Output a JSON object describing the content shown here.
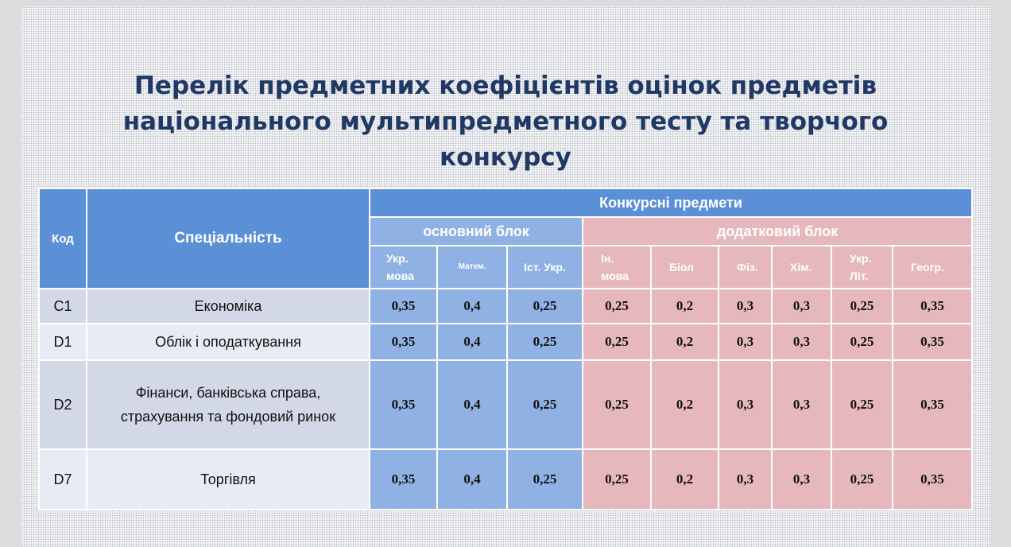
{
  "title": {
    "line1": "Перелік предметних коефіцієнтів оцінок предметів",
    "line2": "національного мультипредметного тесту та творчого",
    "line3": "конкурсу"
  },
  "table": {
    "code_header": "Код",
    "specialty_header": "Спеціальність",
    "subjects_header": "Конкурсні предмети",
    "basic_block": "основний блок",
    "extra_block": "додатковий блок",
    "basic_subjects": [
      {
        "l1": "Укр.",
        "l2": "мова"
      },
      {
        "l1": "Матем.",
        "l2": ""
      },
      {
        "l1": "Іст. Укр.",
        "l2": ""
      }
    ],
    "extra_subjects": [
      {
        "l1": "Ін.",
        "l2": "мова"
      },
      {
        "l1": "Біол",
        "l2": ""
      },
      {
        "l1": "Фіз.",
        "l2": ""
      },
      {
        "l1": "Хім.",
        "l2": ""
      },
      {
        "l1": "Укр.",
        "l2": "Літ."
      },
      {
        "l1": "Геогр.",
        "l2": ""
      }
    ],
    "rows": [
      {
        "code": "С1",
        "specialty": [
          "Економіка"
        ],
        "values": [
          "0,35",
          "0,4",
          "0,25",
          "0,25",
          "0,2",
          "0,3",
          "0,3",
          "0,25",
          "0,35"
        ]
      },
      {
        "code": "D1",
        "specialty": [
          "Облік і оподаткування"
        ],
        "values": [
          "0,35",
          "0,4",
          "0,25",
          "0,25",
          "0,2",
          "0,3",
          "0,3",
          "0,25",
          "0,35"
        ]
      },
      {
        "code": "D2",
        "specialty": [
          "Фінанси, банківська справа,",
          "страхування та фондовий ринок"
        ],
        "values": [
          "0,35",
          "0,4",
          "0,25",
          "0,25",
          "0,2",
          "0,3",
          "0,3",
          "0,25",
          "0,35"
        ]
      },
      {
        "code": "D7",
        "specialty": [
          "Торгівля"
        ],
        "values": [
          "0,35",
          "0,4",
          "0,25",
          "0,25",
          "0,2",
          "0,3",
          "0,3",
          "0,25",
          "0,35"
        ]
      }
    ]
  },
  "colors": {
    "title": "#1f3864",
    "header_blue": "#5b8fd6",
    "basic_block": "#8fb1e3",
    "extra_block": "#e6b8bd",
    "row_dark": "#d3d8e6",
    "row_light": "#e8ebf3"
  }
}
